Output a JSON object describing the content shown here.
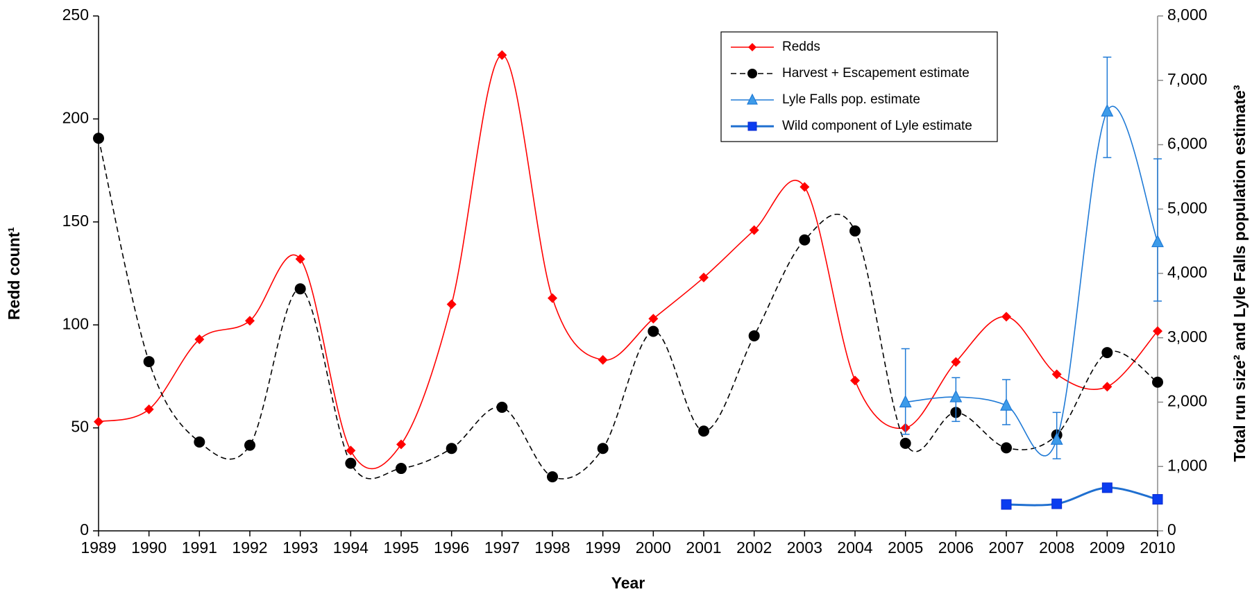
{
  "chart_data": {
    "type": "line",
    "x_label": "Year",
    "y_label": "Redd count¹",
    "y2_label": "Total run size² and Lyle Falls population estimate³",
    "categories": [
      "1989",
      "1990",
      "1991",
      "1992",
      "1993",
      "1994",
      "1995",
      "1996",
      "1997",
      "1998",
      "1999",
      "2000",
      "2001",
      "2002",
      "2003",
      "2004",
      "2005",
      "2006",
      "2007",
      "2008",
      "2009",
      "2010"
    ],
    "ylim": [
      0,
      250
    ],
    "yticks": [
      0,
      50,
      100,
      150,
      200,
      250
    ],
    "y2lim": [
      0,
      8000
    ],
    "y2ticks": [
      0,
      {
        "value": 1000,
        "label": "1,000"
      },
      {
        "value": 2000,
        "label": "2,000"
      },
      {
        "value": 3000,
        "label": "3,000"
      },
      {
        "value": 4000,
        "label": "4,000"
      },
      {
        "value": 5000,
        "label": "5,000"
      },
      {
        "value": 6000,
        "label": "6,000"
      },
      {
        "value": 7000,
        "label": "7,000"
      },
      {
        "value": 8000,
        "label": "8,000"
      }
    ],
    "legend": "upper right",
    "smooth": true,
    "series": [
      {
        "name": "Redds",
        "color": "#ff0000",
        "marker": "diamond",
        "dash": false,
        "values": [
          53,
          59,
          93,
          102,
          132,
          39,
          42,
          110,
          231,
          113,
          83,
          103,
          123,
          146,
          167,
          73,
          50,
          82,
          104,
          76,
          70,
          97
        ]
      },
      {
        "name": "Harvest + Escapement estimate",
        "color": "#000000",
        "marker": "circle",
        "dash": true,
        "axis": "y2",
        "values": [
          6100,
          2630,
          1380,
          1330,
          3760,
          1050,
          970,
          1280,
          1920,
          840,
          1280,
          3100,
          1550,
          3030,
          4520,
          4660,
          1360,
          1840,
          1290,
          1490,
          2770,
          2310
        ]
      },
      {
        "name": "Lyle Falls pop. estimate",
        "color": "#1f7ad6",
        "marker": "triangle",
        "dash": false,
        "axis": "y2",
        "values": [
          null,
          null,
          null,
          null,
          null,
          null,
          null,
          null,
          null,
          null,
          null,
          null,
          null,
          null,
          null,
          null,
          2000,
          2080,
          1950,
          1420,
          6520,
          4490
        ],
        "lower": [
          null,
          null,
          null,
          null,
          null,
          null,
          null,
          null,
          null,
          null,
          null,
          null,
          null,
          null,
          null,
          null,
          1500,
          1700,
          1650,
          1120,
          5800,
          3570
        ],
        "upper": [
          null,
          null,
          null,
          null,
          null,
          null,
          null,
          null,
          null,
          null,
          null,
          null,
          null,
          null,
          null,
          null,
          2830,
          2380,
          2350,
          1840,
          7360,
          5780
        ]
      },
      {
        "name": "Wild component of Lyle estimate",
        "color": "#1f6fd0",
        "marker": "square",
        "dash": false,
        "axis": "y2",
        "values": [
          null,
          null,
          null,
          null,
          null,
          null,
          null,
          null,
          null,
          null,
          null,
          null,
          null,
          null,
          null,
          null,
          null,
          null,
          410,
          420,
          670,
          490
        ]
      }
    ]
  }
}
